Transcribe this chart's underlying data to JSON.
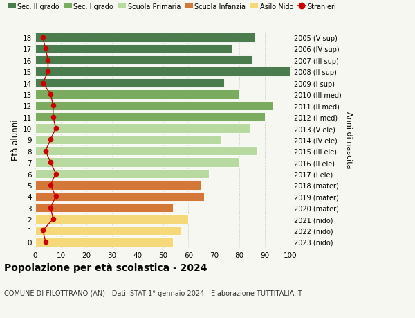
{
  "ages": [
    18,
    17,
    16,
    15,
    14,
    13,
    12,
    11,
    10,
    9,
    8,
    7,
    6,
    5,
    4,
    3,
    2,
    1,
    0
  ],
  "right_labels": [
    "2005 (V sup)",
    "2006 (IV sup)",
    "2007 (III sup)",
    "2008 (II sup)",
    "2009 (I sup)",
    "2010 (III med)",
    "2011 (II med)",
    "2012 (I med)",
    "2013 (V ele)",
    "2014 (IV ele)",
    "2015 (III ele)",
    "2016 (II ele)",
    "2017 (I ele)",
    "2018 (mater)",
    "2019 (mater)",
    "2020 (mater)",
    "2021 (nido)",
    "2022 (nido)",
    "2023 (nido)"
  ],
  "bar_values": [
    86,
    77,
    85,
    100,
    74,
    80,
    93,
    90,
    84,
    73,
    87,
    80,
    68,
    65,
    66,
    54,
    60,
    57,
    54
  ],
  "stranieri_values": [
    3,
    4,
    5,
    5,
    3,
    6,
    7,
    7,
    8,
    6,
    4,
    6,
    8,
    6,
    8,
    6,
    7,
    3,
    4
  ],
  "bar_colors": [
    "#4a7c4e",
    "#4a7c4e",
    "#4a7c4e",
    "#4a7c4e",
    "#4a7c4e",
    "#7aab5e",
    "#7aab5e",
    "#7aab5e",
    "#b8d9a0",
    "#b8d9a0",
    "#b8d9a0",
    "#b8d9a0",
    "#b8d9a0",
    "#d4783a",
    "#d4783a",
    "#d4783a",
    "#f5d87a",
    "#f5d87a",
    "#f5d87a"
  ],
  "legend_entries": [
    {
      "label": "Sec. II grado",
      "color": "#4a7c4e"
    },
    {
      "label": "Sec. I grado",
      "color": "#7aab5e"
    },
    {
      "label": "Scuola Primaria",
      "color": "#b8d9a0"
    },
    {
      "label": "Scuola Infanzia",
      "color": "#d4783a"
    },
    {
      "label": "Asilo Nido",
      "color": "#f5d87a"
    },
    {
      "label": "Stranieri",
      "color": "#cc0000"
    }
  ],
  "ylabel": "Età alunni",
  "right_ylabel": "Anni di nascita",
  "title": "Popolazione per età scolastica - 2024",
  "subtitle": "COMUNE DI FILOTTRANO (AN) - Dati ISTAT 1° gennaio 2024 - Elaborazione TUTTITALIA.IT",
  "xlim": [
    0,
    100
  ],
  "background_color": "#f7f7f2",
  "grid_color": "#cccccc",
  "stranieri_color": "#cc0000",
  "bar_height": 0.82
}
